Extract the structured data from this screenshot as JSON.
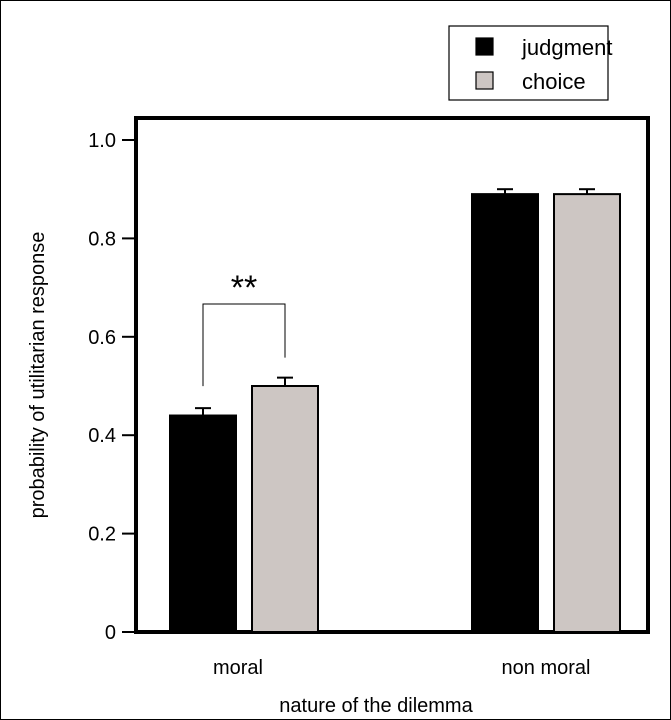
{
  "chart_data": {
    "type": "bar",
    "title": "",
    "xlabel": "nature of the dilemma",
    "ylabel": "probability of utilitarian response",
    "categories": [
      "moral",
      "non moral"
    ],
    "ylim": [
      0,
      1.0
    ],
    "yticks": [
      0,
      0.2,
      0.4,
      0.6,
      0.8,
      1.0
    ],
    "ytick_labels": [
      "0",
      "0.2",
      "0.4",
      "0.6",
      "0.8",
      "1.0"
    ],
    "series": [
      {
        "name": "judgment",
        "color": "#000000",
        "values": [
          0.44,
          0.89
        ],
        "errors": [
          0.015,
          0.01
        ]
      },
      {
        "name": "choice",
        "color": "#cdc6c3",
        "values": [
          0.5,
          0.89
        ],
        "errors": [
          0.017,
          0.01
        ]
      }
    ],
    "legend_position": "top-right",
    "grid": false,
    "annotations": [
      {
        "text": "**",
        "category": "moral",
        "type": "significance-bracket"
      }
    ]
  }
}
